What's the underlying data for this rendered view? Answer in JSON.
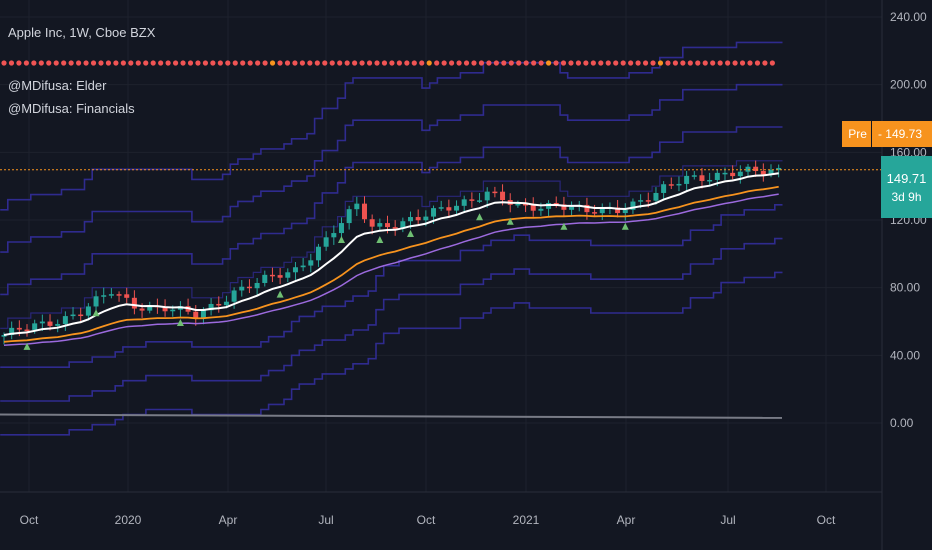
{
  "header": {
    "symbol_line": "Apple Inc, 1W, Cboe BZX",
    "indicator_1": "@MDifusa: Elder",
    "indicator_2": "@MDifusa: Financials"
  },
  "price_tags": {
    "pre_label": "Pre",
    "pre_value": "149.73",
    "last_value": "149.71",
    "countdown": "3d 9h"
  },
  "colors": {
    "background": "#131722",
    "grid": "#1e222d",
    "up": "#26a69a",
    "down": "#ef5350",
    "ema_fast": "#ffffff",
    "ema_slow": "#f7931e",
    "ema_mid": "#9c6ade",
    "bands": "#2f2b8f",
    "dots": "#f05454",
    "dots_alt": "#f7931e",
    "pre_tag": "#f7931e",
    "last_tag": "#26a69a",
    "price_line": "#f7931e",
    "markers": "#6fbf73",
    "bottom_line": "#787b86"
  },
  "chart_data": {
    "type": "candlestick",
    "ylim": [
      -40,
      250
    ],
    "y_ticks": [
      "240.00",
      "200.00",
      "160.00",
      "120.00",
      "80.00",
      "40.00",
      "0.00"
    ],
    "x_ticks": [
      "Oct",
      "2020",
      "Apr",
      "Jul",
      "Oct",
      "2021",
      "Apr",
      "Jul",
      "Oct"
    ],
    "close_anchor_weeks": [
      0,
      5,
      10,
      14,
      17,
      21,
      25,
      30,
      34,
      38,
      42,
      46,
      48,
      51,
      54,
      59,
      63,
      67,
      72,
      76,
      80,
      85,
      89,
      93,
      98,
      101
    ],
    "close_anchor_values": [
      52,
      58,
      66,
      77,
      70,
      68,
      63,
      78,
      84,
      91,
      108,
      128,
      117,
      118,
      120,
      130,
      136,
      127,
      130,
      124,
      127,
      135,
      145,
      147,
      148,
      150
    ],
    "bands_upper_offsets": [
      25,
      50,
      75
    ],
    "bands_lower_offsets": [
      18,
      38,
      58
    ],
    "last_price": 149.71,
    "pre_market_price": 149.73
  }
}
